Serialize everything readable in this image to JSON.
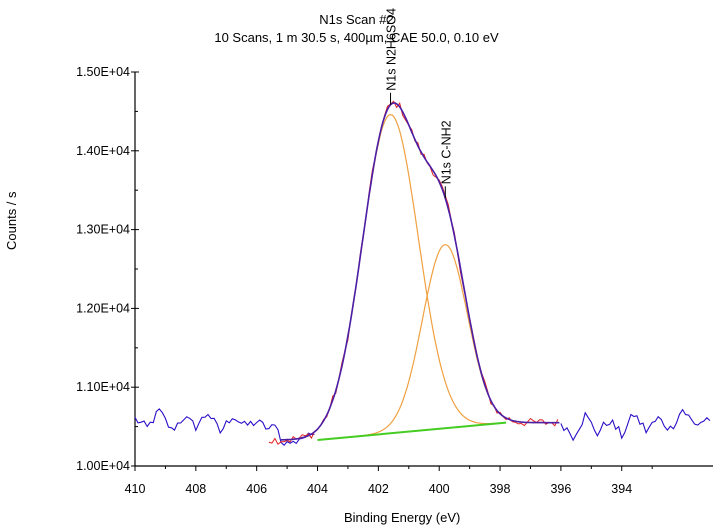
{
  "chart_data": {
    "type": "line",
    "title": "N1s Scan #2",
    "subtitle": "10 Scans,  1 m 30.5 s,  400µm,  CAE 50.0,  0.10 eV",
    "xlabel": "Binding Energy (eV)",
    "ylabel": "Counts / s",
    "x_reversed": true,
    "xlim": [
      410.0,
      391.0
    ],
    "ylim": [
      10000,
      15000
    ],
    "x_ticks": [
      410,
      408,
      406,
      404,
      402,
      400,
      398,
      396,
      394
    ],
    "y_ticks": [
      "1.00E+04",
      "1.10E+04",
      "1.20E+04",
      "1.30E+04",
      "1.40E+04",
      "1.50E+04"
    ],
    "grid": false,
    "colors": {
      "raw_outside": "#2a10c8",
      "raw_inside": "#e02020",
      "envelope": "#4b1fa8",
      "components": "#f0a040",
      "background": "#44cc22"
    },
    "peaks": [
      {
        "label": "N1s N2H6SO4",
        "center": 401.6,
        "height": 14460,
        "sigma": 0.92
      },
      {
        "label": "N1s C-NH2",
        "center": 399.8,
        "height": 12810,
        "sigma": 0.74
      }
    ],
    "background_line": {
      "start": [
        404.0,
        10330
      ],
      "end": [
        397.8,
        10550
      ]
    },
    "noise_points_left": [
      [
        410.0,
        10600
      ],
      [
        409.6,
        10480
      ],
      [
        409.2,
        10700
      ],
      [
        408.8,
        10450
      ],
      [
        408.4,
        10620
      ],
      [
        408.0,
        10500
      ],
      [
        407.6,
        10680
      ],
      [
        407.2,
        10430
      ],
      [
        406.8,
        10640
      ],
      [
        406.4,
        10510
      ],
      [
        406.0,
        10560
      ],
      [
        405.6,
        10470
      ],
      [
        405.2,
        10520
      ]
    ],
    "noise_points_right": [
      [
        396.0,
        10560
      ],
      [
        395.6,
        10380
      ],
      [
        395.2,
        10640
      ],
      [
        394.8,
        10420
      ],
      [
        394.4,
        10580
      ],
      [
        394.0,
        10390
      ],
      [
        393.6,
        10660
      ],
      [
        393.2,
        10450
      ],
      [
        392.8,
        10600
      ],
      [
        392.4,
        10470
      ],
      [
        392.0,
        10720
      ],
      [
        391.6,
        10520
      ],
      [
        391.2,
        10600
      ]
    ]
  }
}
